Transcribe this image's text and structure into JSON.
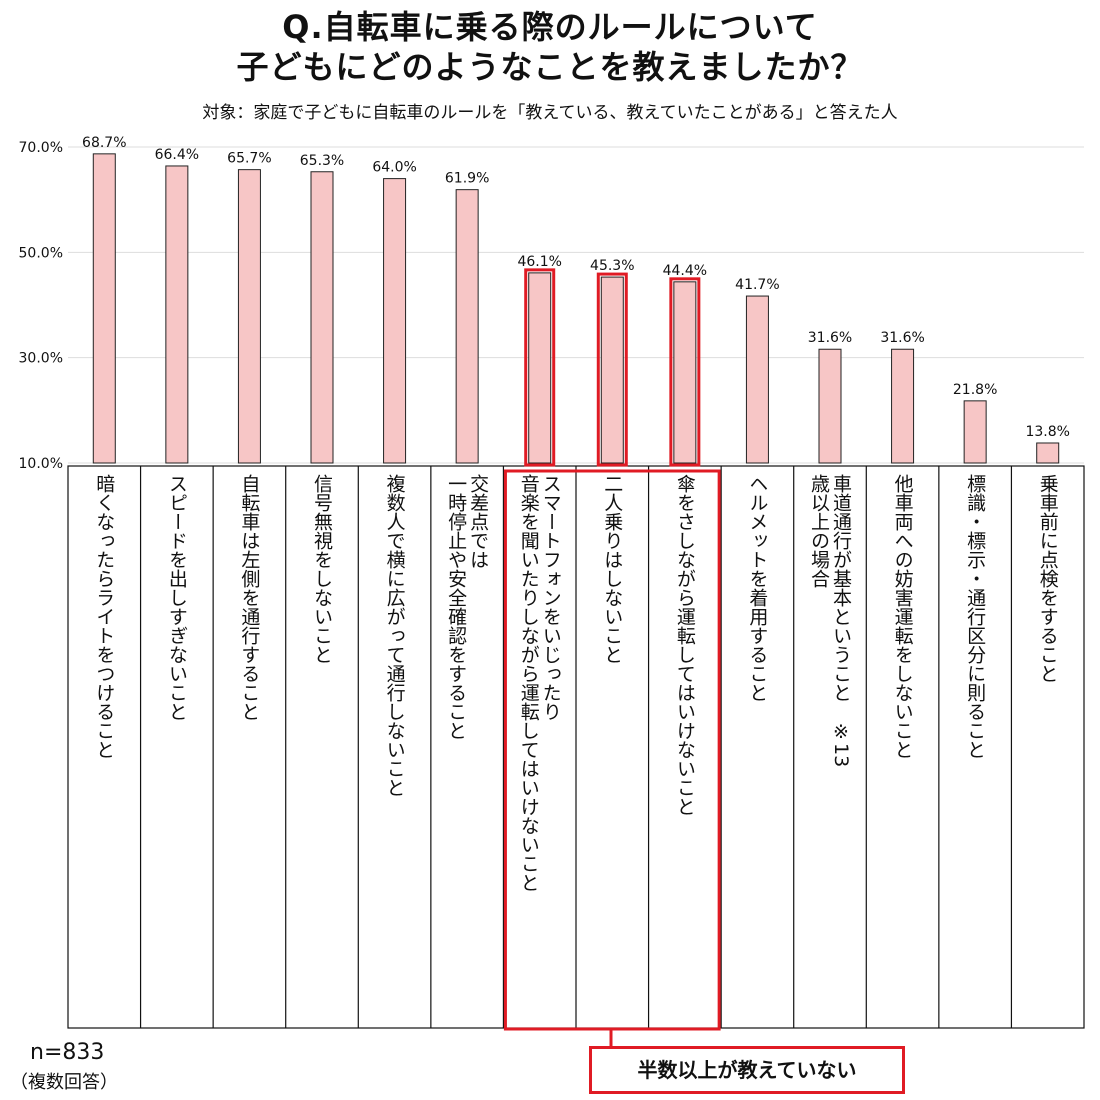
{
  "title_line1": "Q.自転車に乗る際のルールについて",
  "title_line2": "子どもにどのようなことを教えましたか？",
  "subtitle": "対象：家庭で子どもに自転車のルールを「教えている、教えていたことがある」と答えた人",
  "sample_size": "n=833",
  "answer_note": "（複数回答）",
  "callout_text": "半数以上が教えていない",
  "colors": {
    "bar_fill": "#f7c6c6",
    "bar_stroke": "#222222",
    "highlight": "#e01b24",
    "grid": "#dddddd"
  },
  "chart_data": {
    "type": "bar",
    "title": "Q.自転車に乗る際のルールについて 子どもにどのようなことを教えましたか？",
    "ylim": [
      10,
      70
    ],
    "yticks": [
      "70.0%",
      "50.0%",
      "30.0%",
      "10.0%"
    ],
    "ytick_values": [
      70,
      50,
      30,
      10
    ],
    "grid": true,
    "categories": [
      "暗くなったらライトをつけること",
      "スピードを出しすぎないこと",
      "自転車は左側を通行すること",
      "信号無視をしないこと",
      "複数人で横に広がって通行しないこと",
      "交差点では一時停止や安全確認をすること",
      "スマートフォンをいじったり音楽を聞いたりしながら運転してはいけないこと",
      "二人乗りはしないこと",
      "傘をさしながら運転してはいけないこと",
      "ヘルメットを着用すること",
      "車道通行が基本ということ ※13歳以上の場合",
      "他車両への妨害運転をしないこと",
      "標識・標示・通行区分に則ること",
      "乗車前に点検をすること"
    ],
    "label_columns": [
      [
        "暗くなったらライトをつけること"
      ],
      [
        "スピードを出しすぎないこと"
      ],
      [
        "自転車は左側を通行すること"
      ],
      [
        "信号無視をしないこと"
      ],
      [
        "複数人で横に広がって通行しないこと"
      ],
      [
        "交差点では",
        "一時停止や安全確認をすること"
      ],
      [
        "スマートフォンをいじったり",
        "音楽を聞いたりしながら運転してはいけないこと"
      ],
      [
        "二人乗りはしないこと"
      ],
      [
        "傘をさしながら運転してはいけないこと"
      ],
      [
        "ヘルメットを着用すること"
      ],
      [
        "車道通行が基本ということ　※13",
        "歳以上の場合"
      ],
      [
        "他車両への妨害運転をしないこと"
      ],
      [
        "標識・標示・通行区分に則ること"
      ],
      [
        "乗車前に点検をすること"
      ]
    ],
    "values": [
      68.7,
      66.4,
      65.7,
      65.3,
      64.0,
      61.9,
      46.1,
      45.3,
      44.4,
      41.7,
      31.6,
      31.6,
      21.8,
      13.8
    ],
    "value_labels": [
      "68.7%",
      "66.4%",
      "65.7%",
      "65.3%",
      "64.0%",
      "61.9%",
      "46.1%",
      "45.3%",
      "44.4%",
      "41.7%",
      "31.6%",
      "31.6%",
      "21.8%",
      "13.8%"
    ],
    "highlighted_indices": [
      6,
      7,
      8
    ]
  }
}
